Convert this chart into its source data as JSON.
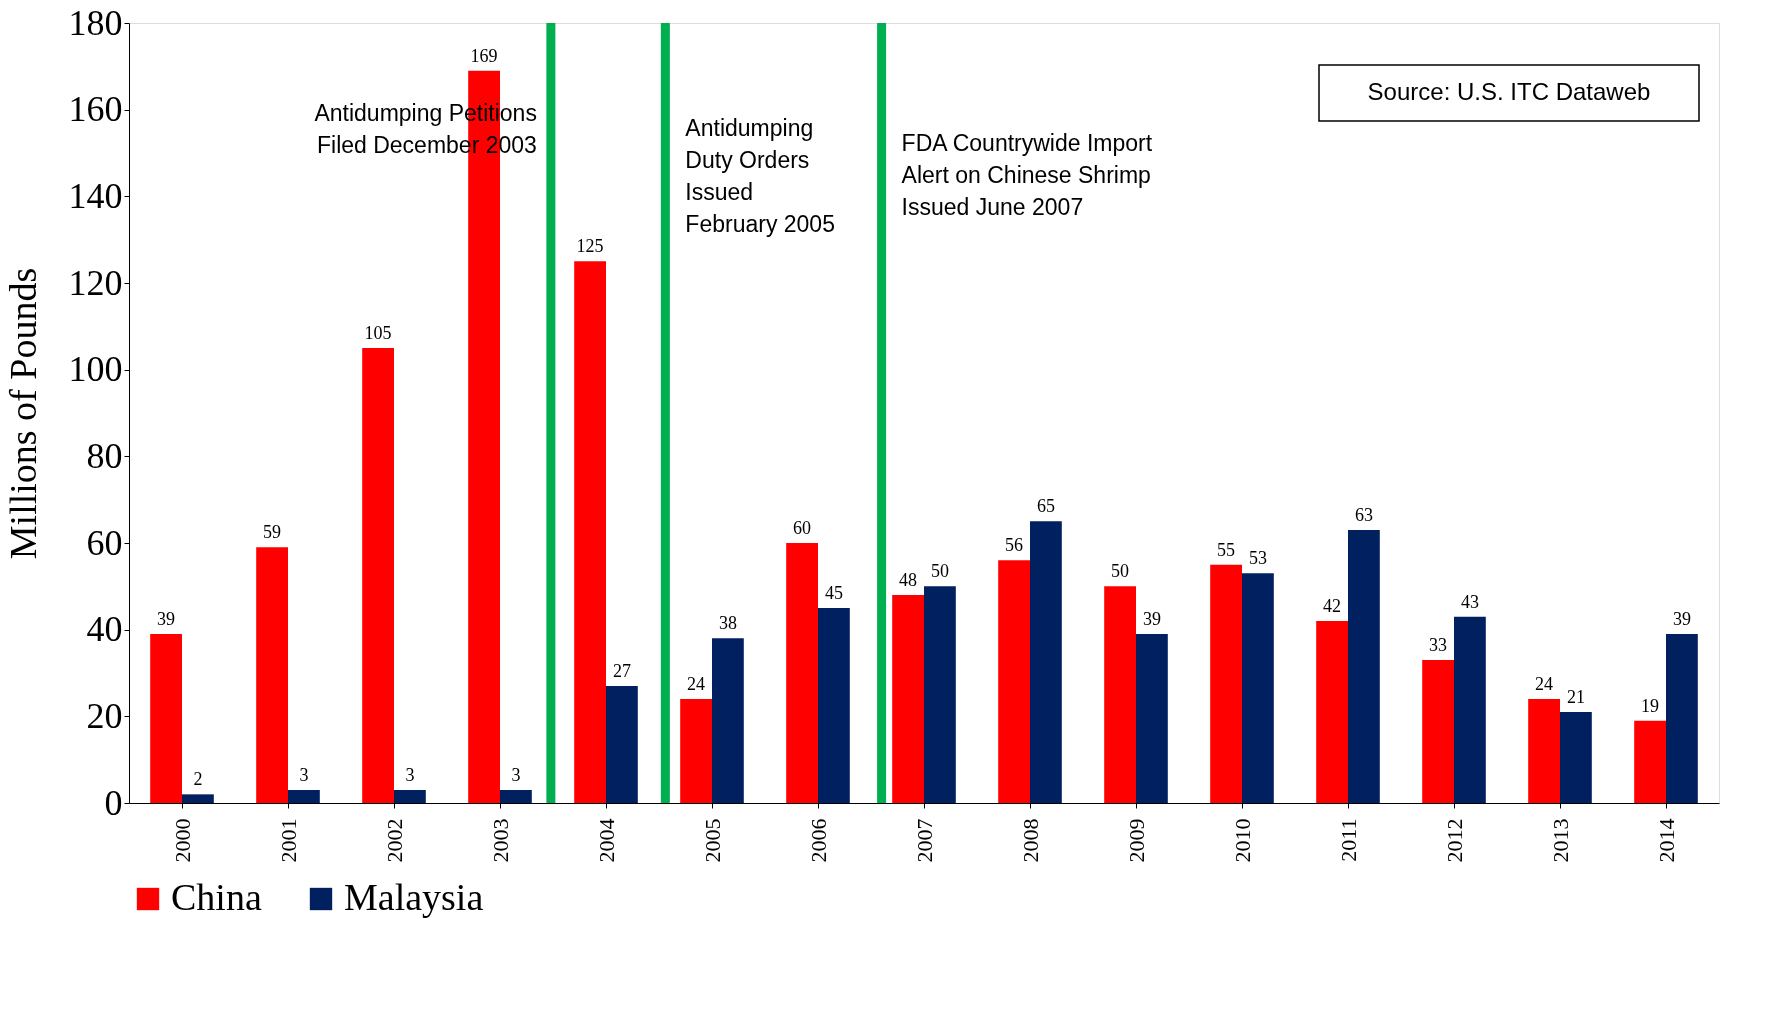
{
  "chart_data": {
    "type": "bar",
    "ylabel": "Millions of Pounds",
    "x": [
      2000,
      2001,
      2002,
      2003,
      2004,
      2005,
      2006,
      2007,
      2008,
      2009,
      2010,
      2011,
      2012,
      2013,
      2014
    ],
    "xlim": [
      1999.5,
      2014.5
    ],
    "xticks": [
      2000,
      2001,
      2002,
      2003,
      2004,
      2005,
      2006,
      2007,
      2008,
      2009,
      2010,
      2011,
      2012,
      2013,
      2014
    ],
    "ylim": [
      0,
      180
    ],
    "yticks": [
      0,
      20,
      40,
      60,
      80,
      100,
      120,
      140,
      160,
      180
    ],
    "series": [
      {
        "name": "China",
        "color": "#ff0000",
        "values": [
          39,
          59,
          105,
          169,
          125,
          24,
          60,
          48,
          56,
          50,
          55,
          42,
          33,
          24,
          19
        ]
      },
      {
        "name": "Malaysia",
        "color": "#002060",
        "values": [
          2,
          3,
          3,
          3,
          27,
          38,
          45,
          50,
          65,
          39,
          53,
          63,
          43,
          21,
          39
        ]
      }
    ],
    "data_labels": true,
    "grid": false,
    "legend": "bottom",
    "ref_lines": [
      {
        "axis": "x",
        "value": 2003.48,
        "label": "Antidumping Petitions\nFiled December 2003",
        "color": "#00b050"
      },
      {
        "axis": "x",
        "value": 2004.56,
        "label": "Antidumping\nDuty Orders\nIssued\nFebruary 2005",
        "color": "#00b050"
      },
      {
        "axis": "x",
        "value": 2006.6,
        "label": "FDA Countrywide Import\nAlert on Chinese Shrimp\nIssued June 2007",
        "color": "#00b050"
      }
    ],
    "annotations": [
      "Source:  U.S. ITC Dataweb"
    ]
  }
}
